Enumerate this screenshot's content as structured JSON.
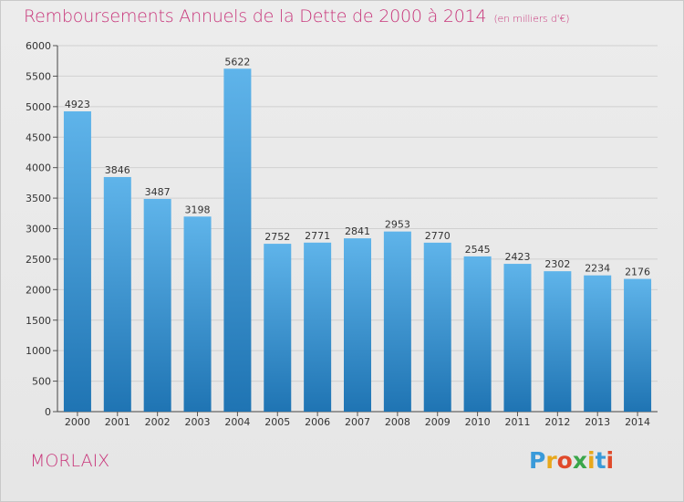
{
  "title": "Remboursements Annuels de la Dette de 2000 à 2014",
  "unit_note": "(en milliers d'€)",
  "city": "MORLAIX",
  "logo": {
    "letters": [
      "P",
      "r",
      "o",
      "x",
      "i",
      "t",
      "i"
    ],
    "colors": [
      "#3a9ad9",
      "#e8a81c",
      "#e04a2b",
      "#3aa64a",
      "#e8a81c",
      "#3a9ad9",
      "#e04a2b"
    ]
  },
  "colors": {
    "bar_top": "#5fb4ea",
    "bar_bottom": "#1f74b3",
    "accent": "#c8357a"
  },
  "chart_data": {
    "type": "bar",
    "title": "Remboursements Annuels de la Dette de 2000 à 2014",
    "xlabel": "",
    "ylabel": "",
    "ylim": [
      0,
      6000
    ],
    "yticks": [
      0,
      500,
      1000,
      1500,
      2000,
      2500,
      3000,
      3500,
      4000,
      4500,
      5000,
      5500,
      6000
    ],
    "categories": [
      "2000",
      "2001",
      "2002",
      "2003",
      "2004",
      "2005",
      "2006",
      "2007",
      "2008",
      "2009",
      "2010",
      "2011",
      "2012",
      "2013",
      "2014"
    ],
    "values": [
      4923,
      3846,
      3487,
      3198,
      5622,
      2752,
      2771,
      2841,
      2953,
      2770,
      2545,
      2423,
      2302,
      2234,
      2176
    ],
    "grid": true
  }
}
